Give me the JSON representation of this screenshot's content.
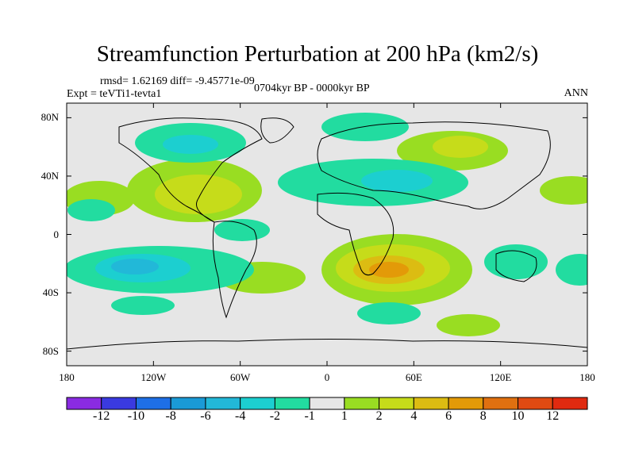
{
  "title": "Streamfunction Perturbation at 200 hPa (km2/s)",
  "stats": "rmsd= 1.62169 diff= -9.45771e-09",
  "experiment": "Expt = teVTi1-tevta1",
  "period": "0704kyr BP - 0000kyr BP",
  "season": "ANN",
  "lat_labels": [
    "80N",
    "40N",
    "0",
    "40S",
    "80S"
  ],
  "lon_labels": [
    "180",
    "120W",
    "60W",
    "0",
    "60E",
    "120E",
    "180"
  ],
  "colorbar": {
    "labels": [
      "-12",
      "-10",
      "-8",
      "-6",
      "-4",
      "-2",
      "-1",
      "1",
      "2",
      "4",
      "6",
      "8",
      "10",
      "12"
    ],
    "colors": [
      "#8a2be2",
      "#3a3ae0",
      "#1e6fe6",
      "#1a9ad6",
      "#22b8d8",
      "#1ccfd0",
      "#22dca0",
      "#e6e6e6",
      "#99dd22",
      "#c6dc1a",
      "#dcbc12",
      "#e39a08",
      "#e07010",
      "#e04a12",
      "#e02a10"
    ]
  },
  "colors": {
    "background": "#e6e6e6",
    "coast": "#000000"
  }
}
